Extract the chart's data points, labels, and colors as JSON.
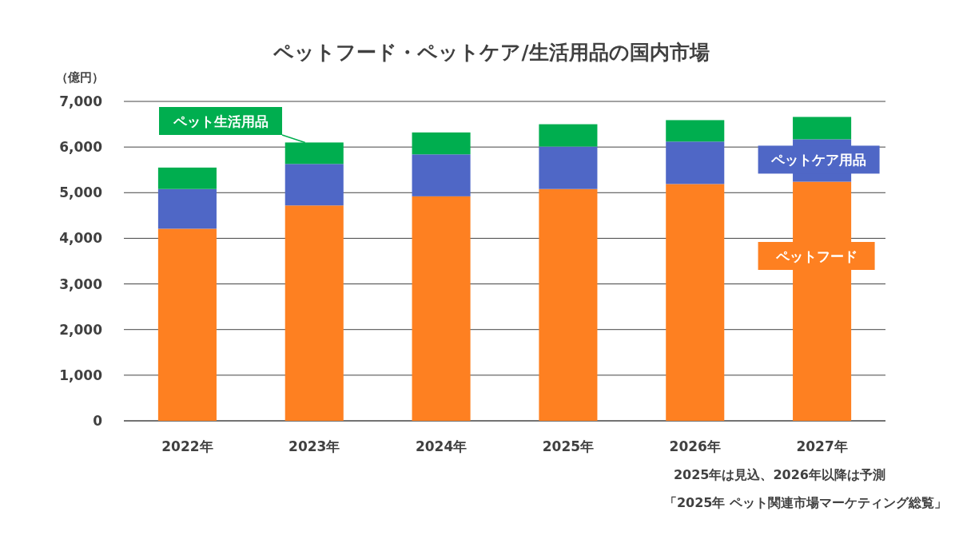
{
  "chart_data": {
    "type": "bar",
    "stacked": true,
    "title": "ペットフード・ペットケア/生活用品の国内市場",
    "ylabel": "（億円）",
    "categories": [
      "2022年",
      "2023年",
      "2024年",
      "2025年",
      "2026年",
      "2027年"
    ],
    "series": [
      {
        "name": "ペットフード",
        "color": "#fe8021",
        "values": [
          4210,
          4720,
          4920,
          5080,
          5190,
          5240
        ]
      },
      {
        "name": "ペットケア用品",
        "color": "#4f67c6",
        "values": [
          870,
          910,
          920,
          930,
          930,
          930
        ]
      },
      {
        "name": "ペット生活用品",
        "color": "#00ae4f",
        "values": [
          470,
          470,
          480,
          490,
          470,
          490
        ]
      }
    ],
    "ylim": [
      0,
      7000
    ],
    "yticks": [
      {
        "value": 0,
        "label": "0"
      },
      {
        "value": 1000,
        "label": "1,000"
      },
      {
        "value": 2000,
        "label": "2,000"
      },
      {
        "value": 3000,
        "label": "3,000"
      },
      {
        "value": 4000,
        "label": "4,000"
      },
      {
        "value": 5000,
        "label": "5,000"
      },
      {
        "value": 6000,
        "label": "6,000"
      },
      {
        "value": 7000,
        "label": "7,000"
      }
    ],
    "grid": "y",
    "legend": false,
    "annotations": [
      "2025年は見込、2026年以降は予測",
      "「2025年 ペット関連市場マーケティング総覧」"
    ]
  }
}
